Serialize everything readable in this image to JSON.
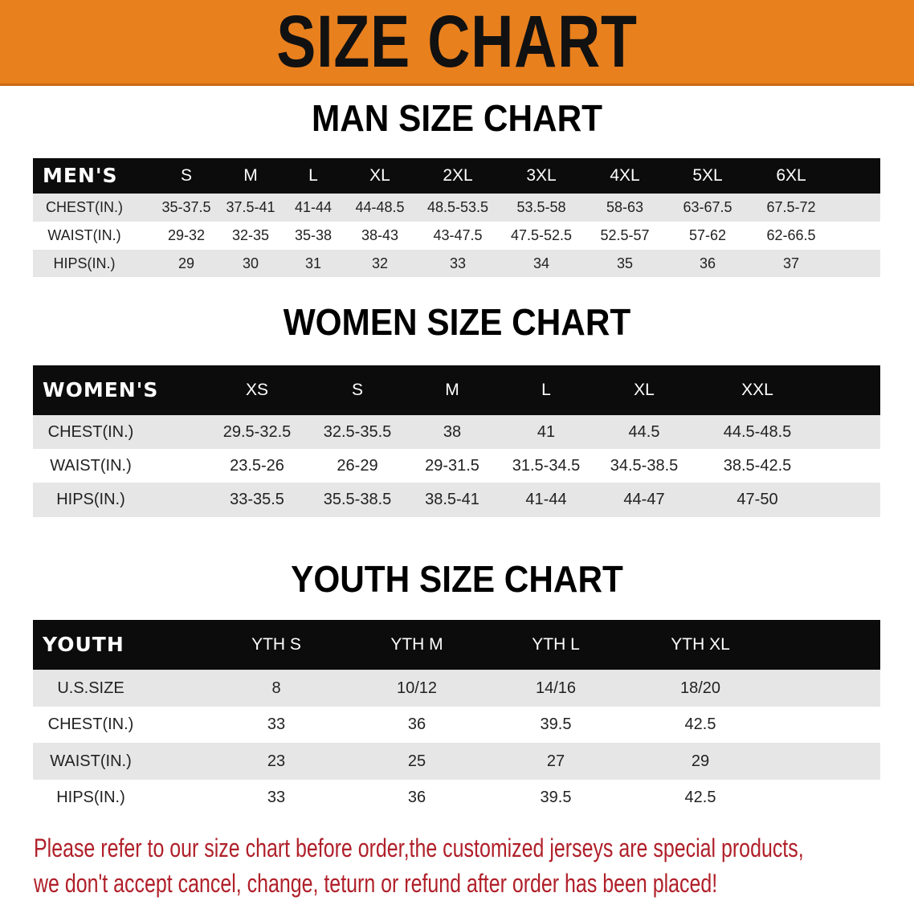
{
  "title": "SIZE CHART",
  "colors": {
    "banner": "#e8801e",
    "header_bg": "#0c0c0c",
    "row_alt": "#e6e6e6",
    "note": "#b0202a"
  },
  "men": {
    "heading": "MAN SIZE CHART",
    "header": [
      "MEN'S",
      "S",
      "M",
      "L",
      "XL",
      "2XL",
      "3XL",
      "4XL",
      "5XL",
      "6XL"
    ],
    "rows": [
      [
        "CHEST(IN.)",
        "35-37.5",
        "37.5-41",
        "41-44",
        "44-48.5",
        "48.5-53.5",
        "53.5-58",
        "58-63",
        "63-67.5",
        "67.5-72"
      ],
      [
        "WAIST(IN.)",
        "29-32",
        "32-35",
        "35-38",
        "38-43",
        "43-47.5",
        "47.5-52.5",
        "52.5-57",
        "57-62",
        "62-66.5"
      ],
      [
        "HIPS(IN.)",
        "29",
        "30",
        "31",
        "32",
        "33",
        "34",
        "35",
        "36",
        "37"
      ]
    ]
  },
  "women": {
    "heading": "WOMEN SIZE CHART",
    "header": [
      "WOMEN'S",
      "XS",
      "S",
      "M",
      "L",
      "XL",
      "XXL"
    ],
    "rows": [
      [
        "CHEST(IN.)",
        "29.5-32.5",
        "32.5-35.5",
        "38",
        "41",
        "44.5",
        "44.5-48.5"
      ],
      [
        "WAIST(IN.)",
        "23.5-26",
        "26-29",
        "29-31.5",
        "31.5-34.5",
        "34.5-38.5",
        "38.5-42.5"
      ],
      [
        "HIPS(IN.)",
        "33-35.5",
        "35.5-38.5",
        "38.5-41",
        "41-44",
        "44-47",
        "47-50"
      ]
    ]
  },
  "youth": {
    "heading": "YOUTH SIZE CHART",
    "header": [
      "YOUTH",
      "YTH S",
      "YTH M",
      "YTH L",
      "YTH XL"
    ],
    "rows": [
      [
        "U.S.SIZE",
        "8",
        "10/12",
        "14/16",
        "18/20"
      ],
      [
        "CHEST(IN.)",
        "33",
        "36",
        "39.5",
        "42.5"
      ],
      [
        "WAIST(IN.)",
        "23",
        "25",
        "27",
        "29"
      ],
      [
        "HIPS(IN.)",
        "33",
        "36",
        "39.5",
        "42.5"
      ]
    ]
  },
  "notice": {
    "line1": "Please refer to our size chart before order,the customized jerseys are special products,",
    "line2": "we don't accept cancel, change, teturn or refund after order has been placed!"
  }
}
